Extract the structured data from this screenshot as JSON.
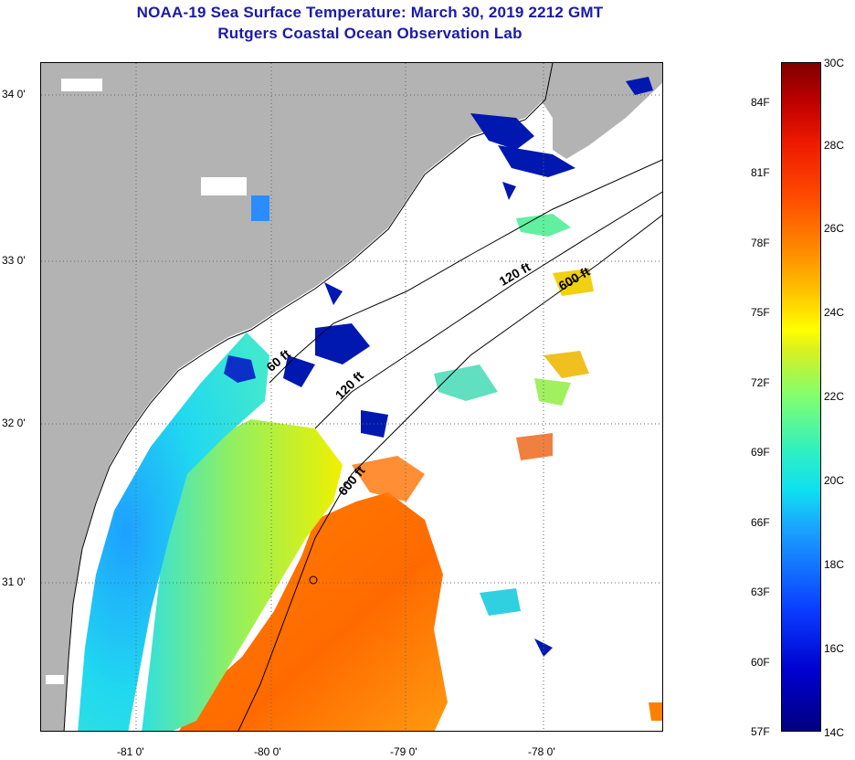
{
  "header": {
    "title": "NOAA-19 Sea Surface Temperature:  March 30, 2019 2212 GMT",
    "subtitle": "Rutgers Coastal Ocean Observation Lab"
  },
  "map": {
    "lon_ticks": [
      "-81 0'",
      "-80 0'",
      "-79 0'",
      "-78 0'"
    ],
    "lat_ticks": [
      "34 0'",
      "33 0'",
      "32 0'",
      "31 0'"
    ],
    "contours": [
      {
        "depth": "60 ft"
      },
      {
        "depth": "120 ft"
      },
      {
        "depth": "120 ft"
      },
      {
        "depth": "600 ft"
      },
      {
        "depth": "600 ft"
      }
    ],
    "land_color": "#b3b3b3",
    "cloud_color": "#ffffff"
  },
  "colorbar": {
    "fahrenheit": [
      "84F",
      "81F",
      "78F",
      "75F",
      "72F",
      "69F",
      "66F",
      "63F",
      "60F",
      "57F"
    ],
    "celsius": [
      "30C",
      "28C",
      "26C",
      "24C",
      "22C",
      "20C",
      "18C",
      "16C",
      "14C"
    ],
    "range_c": [
      14,
      30
    ],
    "range_f": [
      57,
      86
    ]
  }
}
